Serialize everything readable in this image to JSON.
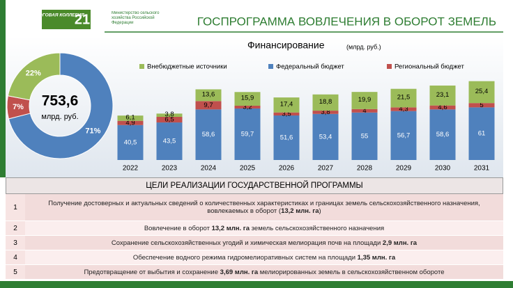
{
  "header": {
    "logo_title": "ИТОГОВАЯ КОЛЛЕГИЯ",
    "logo_number": "21",
    "ministry": "Министерство сельского хозяйства Российской Федерации",
    "title": "ГОСПРОГРАММА ВОВЛЕЧЕНИЯ В ОБОРОТ ЗЕМЕЛЬ"
  },
  "chart_data": [
    {
      "type": "pie",
      "center_text": "753,6",
      "center_subtext": "млрд. руб.",
      "values": [
        71,
        7,
        22
      ],
      "value_labels": [
        "71%",
        "7%",
        "22%"
      ],
      "colors": [
        "#4f81bd",
        "#c0504d",
        "#9bbb59"
      ]
    },
    {
      "type": "bar",
      "stacked": true,
      "title": "Финансирование",
      "subtitle": "(млрд. руб.)",
      "categories": [
        "2022",
        "2023",
        "2024",
        "2025",
        "2026",
        "2027",
        "2028",
        "2029",
        "2030",
        "2031"
      ],
      "ylim": [
        0,
        100
      ],
      "series": [
        {
          "name": "Федеральный бюджет",
          "color": "#4f81bd",
          "values": [
            40.5,
            43.5,
            58.6,
            59.7,
            51.6,
            53.4,
            55,
            56.7,
            58.6,
            61
          ],
          "value_labels": [
            "40,5",
            "43,5",
            "58,6",
            "59,7",
            "51,6",
            "53,4",
            "55",
            "56,7",
            "58,6",
            "61"
          ]
        },
        {
          "name": "Региональный бюджет",
          "color": "#c0504d",
          "values": [
            4.9,
            6.5,
            9.7,
            3.2,
            3.5,
            3.8,
            4,
            4.3,
            4.6,
            5
          ],
          "value_labels": [
            "4,9",
            "6,5",
            "9,7",
            "3,2",
            "3,5",
            "3,8",
            "4",
            "4,3",
            "4,6",
            "5"
          ]
        },
        {
          "name": "Внебюджетные источники",
          "color": "#9bbb59",
          "values": [
            6.1,
            3.8,
            13.6,
            15.9,
            17.4,
            18.8,
            19.9,
            21.5,
            23.1,
            25.4
          ],
          "value_labels": [
            "6,1",
            "3,8",
            "13,6",
            "15,9",
            "17,4",
            "18,8",
            "19,9",
            "21,5",
            "23,1",
            "25,4"
          ]
        }
      ]
    }
  ],
  "table": {
    "title": "ЦЕЛИ РЕАЛИЗАЦИИ ГОСУДАРСТВЕННОЙ ПРОГРАММЫ",
    "rows": [
      {
        "number": "1",
        "parts": [
          {
            "text": "Получение достоверных и актуальных сведений о количественных характеристиках и границах земель сельскохозяйственного назначения, вовлекаемых в оборот (",
            "bold": false
          },
          {
            "text": "13,2 млн. га",
            "bold": true
          },
          {
            "text": ")",
            "bold": false
          }
        ]
      },
      {
        "number": "2",
        "parts": [
          {
            "text": "Вовлечение в оборот ",
            "bold": false
          },
          {
            "text": "13,2 млн. га",
            "bold": true
          },
          {
            "text": " земель сельскохозяйственного назначения",
            "bold": false
          }
        ]
      },
      {
        "number": "3",
        "parts": [
          {
            "text": "Сохранение сельскохозяйственных угодий и химическая мелиорация почв на площади ",
            "bold": false
          },
          {
            "text": "2,9 млн. га",
            "bold": true
          }
        ]
      },
      {
        "number": "4",
        "parts": [
          {
            "text": "Обеспечение водного режима гидромелиоративных систем на площади ",
            "bold": false
          },
          {
            "text": "1,35 млн. га",
            "bold": true
          }
        ]
      },
      {
        "number": "5",
        "parts": [
          {
            "text": "Предотвращение от выбытия и сохранение ",
            "bold": false
          },
          {
            "text": "3,69 млн. га",
            "bold": true
          },
          {
            "text": " мелиорированных земель в сельскохозяйственном обороте",
            "bold": false
          }
        ]
      }
    ]
  }
}
